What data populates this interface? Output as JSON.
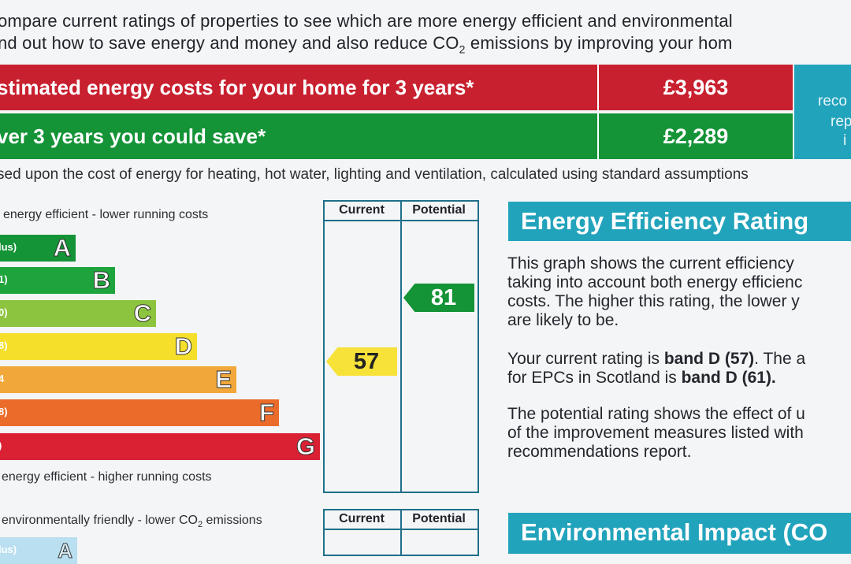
{
  "intro": {
    "line1": "ompare current ratings of properties to see which are more energy efficient and environmental",
    "line2_pre": "nd out how to save energy and money and also reduce CO",
    "line2_sub": "2",
    "line2_post": " emissions by improving your hom"
  },
  "costs": {
    "row1_label": "stimated energy costs for your home for 3 years*",
    "row1_value": "£3,963",
    "row2_label": "ver 3 years you could save*",
    "row2_value": "£2,289",
    "side_lines": [
      "reco",
      "rep",
      "i"
    ]
  },
  "note": "sed upon the cost of energy for heating, hot water, lighting and ventilation, calculated using standard assumptions",
  "ee_chart": {
    "top_label": "energy efficient - lower running costs",
    "bottom_label": "energy efficient - higher running costs",
    "col_current": "Current",
    "col_potential": "Potential",
    "bands": [
      {
        "range": "lus)",
        "letter": "A",
        "color": "#149337"
      },
      {
        "range": "1)",
        "letter": "B",
        "color": "#1ea43c"
      },
      {
        "range": "0)",
        "letter": "C",
        "color": "#8cc43f"
      },
      {
        "range": "8)",
        "letter": "D",
        "color": "#f5df2b"
      },
      {
        "range": "4",
        "letter": "E",
        "color": "#f2a73a"
      },
      {
        "range": "8)",
        "letter": "F",
        "color": "#ea6b2a"
      },
      {
        "range": ")",
        "letter": "G",
        "color": "#d92133"
      }
    ],
    "current_value": "57",
    "potential_value": "81"
  },
  "ee_panel": {
    "heading": "Energy Efficiency Rating",
    "p1": [
      "This graph shows the current efficiency",
      "taking into account both energy efficienc",
      "costs. The higher this rating, the lower y",
      "are likely to be."
    ],
    "p2_line1_pre": "Your current rating is ",
    "p2_line1_bold": "band D (57)",
    "p2_line1_post": ". The a",
    "p2_line2_pre": "for EPCs in Scotland is ",
    "p2_line2_bold": "band D (61).",
    "p3": [
      "The potential rating shows the effect of u",
      "of the improvement measures listed with",
      "recommendations report."
    ]
  },
  "ei_chart": {
    "top_label_pre": "environmentally friendly - lower CO",
    "top_label_sub": "2",
    "top_label_post": " emissions",
    "col_current": "Current",
    "col_potential": "Potential",
    "first_range": "lus)",
    "first_letter": "A"
  },
  "ei_panel": {
    "heading": "Environmental Impact (CO"
  }
}
